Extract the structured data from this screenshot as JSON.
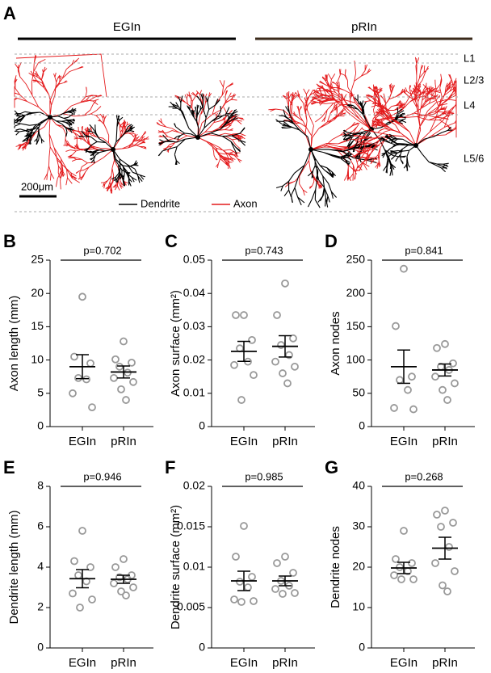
{
  "panel_a": {
    "label": "A",
    "groups": [
      "EGIn",
      "pRIn"
    ],
    "layers": [
      "L1",
      "L2/3",
      "L4",
      "L5/6"
    ],
    "scale_bar": "200μm",
    "legend": [
      "Dendrite",
      "Axon"
    ]
  },
  "chart_data": [
    {
      "type": "dot",
      "panel": "B",
      "annotation": "p=0.702",
      "ylabel": "Axon length (mm)",
      "categories": [
        "EGIn",
        "pRIn"
      ],
      "color": "#999999",
      "ylim": [
        0,
        25
      ],
      "yticks": [
        0,
        5,
        10,
        15,
        20,
        25
      ],
      "groups": [
        {
          "values": [
            19.5,
            10.5,
            9.5,
            7.3,
            7.1,
            5.0,
            2.9
          ],
          "mean": 9.0,
          "sem": 1.8
        },
        {
          "values": [
            12.8,
            10.1,
            9.6,
            9.0,
            8.1,
            7.3,
            6.7,
            5.6,
            4.0
          ],
          "mean": 8.2,
          "sem": 0.9
        }
      ]
    },
    {
      "type": "dot",
      "panel": "C",
      "annotation": "p=0.743",
      "ylabel": "Axon surface (mm²)",
      "categories": [
        "EGIn",
        "pRIn"
      ],
      "color": "#999999",
      "ylim": [
        0,
        0.05
      ],
      "yticks": [
        0,
        0.01,
        0.02,
        0.03,
        0.04,
        0.05
      ],
      "groups": [
        {
          "values": [
            0.0335,
            0.0335,
            0.026,
            0.0235,
            0.0195,
            0.0185,
            0.0155,
            0.008
          ],
          "mean": 0.0226,
          "sem": 0.003
        },
        {
          "values": [
            0.043,
            0.0335,
            0.0265,
            0.0245,
            0.0215,
            0.0195,
            0.018,
            0.016,
            0.013
          ],
          "mean": 0.0241,
          "sem": 0.0032
        }
      ]
    },
    {
      "type": "dot",
      "panel": "D",
      "annotation": "p=0.841",
      "ylabel": "Axon nodes",
      "categories": [
        "EGIn",
        "pRIn"
      ],
      "color": "#999999",
      "ylim": [
        0,
        250
      ],
      "yticks": [
        0,
        50,
        100,
        150,
        200,
        250
      ],
      "groups": [
        {
          "values": [
            237,
            151,
            75,
            70,
            55,
            28,
            26
          ],
          "mean": 90,
          "sem": 25
        },
        {
          "values": [
            124,
            118,
            95,
            90,
            85,
            75,
            65,
            55,
            40
          ],
          "mean": 85,
          "sem": 9
        }
      ]
    },
    {
      "type": "dot",
      "panel": "E",
      "annotation": "p=0.946",
      "ylabel": "Dendrite length (mm)",
      "categories": [
        "EGIn",
        "pRIn"
      ],
      "color": "#999999",
      "ylim": [
        0,
        8
      ],
      "yticks": [
        0,
        2,
        4,
        6,
        8
      ],
      "groups": [
        {
          "values": [
            5.8,
            4.3,
            4.0,
            3.6,
            3.3,
            2.7,
            2.4,
            2.0
          ],
          "mean": 3.43,
          "sem": 0.45
        },
        {
          "values": [
            4.4,
            4.0,
            3.6,
            3.5,
            3.4,
            3.2,
            3.0,
            2.8,
            2.6
          ],
          "mean": 3.4,
          "sem": 0.2
        }
      ]
    },
    {
      "type": "dot",
      "panel": "F",
      "annotation": "p=0.985",
      "ylabel": "Dendrite surface (mm²)",
      "categories": [
        "EGIn",
        "pRIn"
      ],
      "color": "#999999",
      "ylim": [
        0,
        0.02
      ],
      "yticks": [
        0,
        0.005,
        0.01,
        0.015,
        0.02
      ],
      "groups": [
        {
          "values": [
            0.0151,
            0.0113,
            0.0088,
            0.0082,
            0.0075,
            0.006,
            0.0058,
            0.0057
          ],
          "mean": 0.0083,
          "sem": 0.0012
        },
        {
          "values": [
            0.0113,
            0.0105,
            0.0093,
            0.0083,
            0.0077,
            0.0073,
            0.0068,
            0.0067
          ],
          "mean": 0.0083,
          "sem": 0.0006
        }
      ]
    },
    {
      "type": "dot",
      "panel": "G",
      "annotation": "p=0.268",
      "ylabel": "Dendrite nodes",
      "categories": [
        "EGIn",
        "pRIn"
      ],
      "color": "#999999",
      "ylim": [
        0,
        40
      ],
      "yticks": [
        0,
        10,
        20,
        30,
        40
      ],
      "groups": [
        {
          "values": [
            29,
            22,
            21,
            20,
            19,
            18,
            17,
            17
          ],
          "mean": 19.8,
          "sem": 1.4
        },
        {
          "values": [
            34,
            33,
            31,
            30,
            25,
            21,
            19,
            15.5,
            14
          ],
          "mean": 24.7,
          "sem": 2.7
        }
      ]
    }
  ]
}
